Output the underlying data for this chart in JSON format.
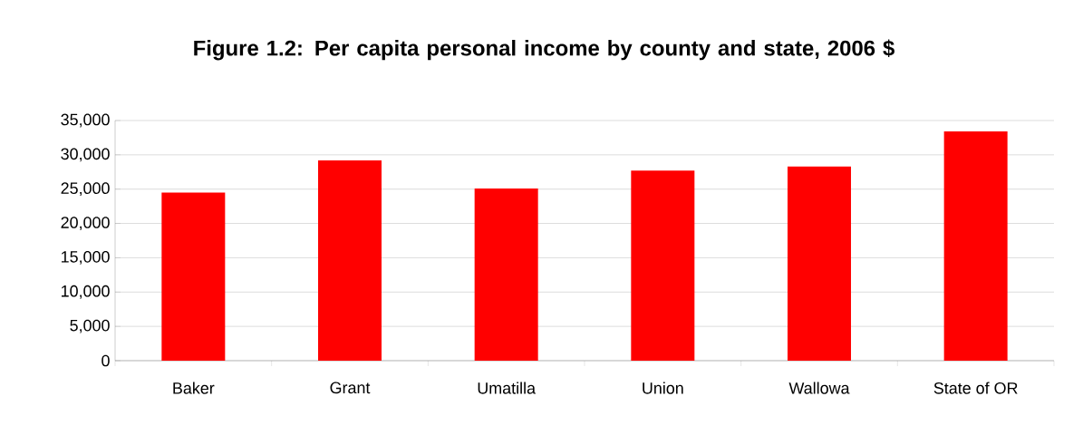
{
  "chart_data": {
    "type": "bar",
    "title": "Figure 1.2: Per capita personal income by county and state, 2006 $",
    "categories": [
      "Baker",
      "Grant",
      "Umatilla",
      "Union",
      "Wallowa",
      "State of OR"
    ],
    "values": [
      24500,
      29200,
      25100,
      27700,
      28300,
      33400
    ],
    "color": "#ff0000",
    "ylim": [
      0,
      35000
    ],
    "yticks": [
      {
        "value": 0,
        "label": "0"
      },
      {
        "value": 5000,
        "label": "5,000"
      },
      {
        "value": 10000,
        "label": "10,000"
      },
      {
        "value": 15000,
        "label": "15,000"
      },
      {
        "value": 20000,
        "label": "20,000"
      },
      {
        "value": 25000,
        "label": "25,000"
      },
      {
        "value": 30000,
        "label": "30,000"
      },
      {
        "value": 35000,
        "label": "35,000"
      }
    ],
    "grid": "y"
  }
}
